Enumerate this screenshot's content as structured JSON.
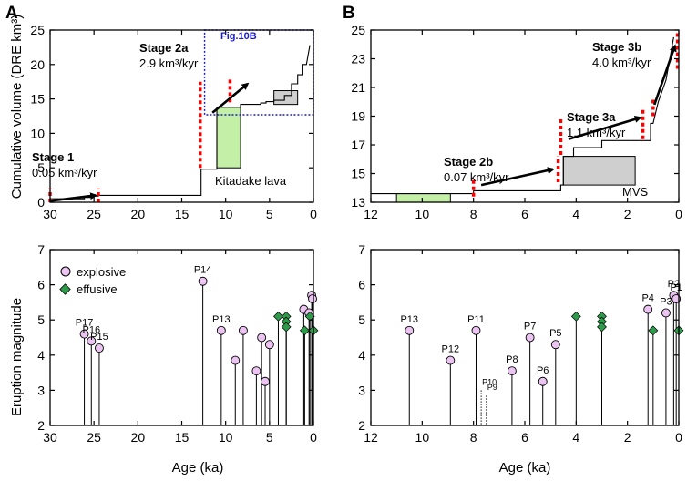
{
  "panel_labels": {
    "A": "A",
    "B": "B"
  },
  "colors": {
    "effusive": "#2e9b4b",
    "explosive_fill": "#ebc4f2",
    "lava_green": "#c3f0a6",
    "mvs_gray": "#cfcfcf",
    "stage_marker": "#ff0000",
    "box_blue": "#1a1acc"
  },
  "annotations": {
    "stage1": {
      "name": "Stage 1",
      "rate": "0.05 km³/kyr"
    },
    "stage2a": {
      "name": "Stage 2a",
      "rate": "2.9 km³/kyr"
    },
    "stage2b": {
      "name": "Stage 2b",
      "rate": "0.07 km³/kyr"
    },
    "stage3a": {
      "name": "Stage 3a",
      "rate": "1.1 km³/kyr"
    },
    "stage3b": {
      "name": "Stage 3b",
      "rate": "4.0 km³/kyr"
    },
    "kitadake": "Kitadake lava",
    "mvs": "MVS",
    "fig10b": "Fig.10B"
  },
  "legend": {
    "explosive": "explosive",
    "effusive": "effusive"
  },
  "chart_data": [
    {
      "id": "A-top",
      "type": "line",
      "ylabel": "Cumulative volume (DRE km³)",
      "xlim": [
        30,
        0
      ],
      "ylim": [
        0,
        25
      ],
      "xticks": [
        30,
        25,
        20,
        15,
        10,
        5,
        0
      ],
      "yticks": [
        0,
        5,
        10,
        15,
        20,
        25
      ],
      "series": [
        {
          "name": "cumulative volume",
          "points": [
            [
              30,
              0.5
            ],
            [
              26.1,
              0.5
            ],
            [
              26.1,
              0.7
            ],
            [
              25,
              0.7
            ],
            [
              25,
              0.9
            ],
            [
              24.5,
              0.9
            ],
            [
              24.5,
              1.0
            ],
            [
              12.8,
              1.0
            ],
            [
              12.8,
              4.8
            ],
            [
              11,
              4.8
            ],
            [
              11,
              13.8
            ],
            [
              8.3,
              13.8
            ],
            [
              8.3,
              14.2
            ],
            [
              6,
              14.2
            ],
            [
              6,
              14.4
            ],
            [
              5.4,
              14.4
            ],
            [
              5.4,
              14.6
            ],
            [
              4.5,
              14.6
            ],
            [
              4.5,
              14.8
            ],
            [
              3.3,
              14.8
            ],
            [
              3.3,
              15.5
            ],
            [
              2.5,
              15.5
            ],
            [
              2.5,
              17.2
            ],
            [
              1.8,
              17.2
            ],
            [
              1.8,
              18.5
            ],
            [
              1.2,
              18.5
            ],
            [
              1.2,
              20
            ],
            [
              0.8,
              20
            ],
            [
              0.4,
              22.8
            ]
          ]
        }
      ],
      "bars": [
        {
          "label": "Kitadake lava",
          "x0": 11,
          "x1": 8.3,
          "y0": 5,
          "y1": 13.8
        },
        {
          "label": "MVS",
          "x0": 4.5,
          "x1": 1.8,
          "y0": 14.2,
          "y1": 16.2
        }
      ],
      "stage_markers": [
        {
          "x": 30,
          "y0": 0,
          "y1": 2
        },
        {
          "x": 24.5,
          "y0": 0,
          "y1": 2
        },
        {
          "x": 12.9,
          "y0": 5,
          "y1": 17.5
        },
        {
          "x": 9.5,
          "y0": 14.5,
          "y1": 18
        }
      ],
      "arrows": [
        {
          "from": [
            30,
            0.2
          ],
          "to": [
            24.8,
            1.0
          ]
        },
        {
          "from": [
            11.5,
            13
          ],
          "to": [
            7.5,
            17.2
          ]
        }
      ],
      "inset_box": {
        "label": "Fig.10B",
        "x0": 12.4,
        "x1": 0,
        "y0": 12.7,
        "y1": 25
      }
    },
    {
      "id": "B-top",
      "type": "line",
      "xlim": [
        12,
        0
      ],
      "ylim": [
        13,
        25
      ],
      "xticks": [
        12,
        10,
        8,
        6,
        4,
        2,
        0
      ],
      "yticks": [
        13,
        15,
        17,
        19,
        21,
        23,
        25
      ],
      "series": [
        {
          "name": "cumulative volume",
          "points": [
            [
              12,
              13.6
            ],
            [
              8,
              13.6
            ],
            [
              8,
              13.8
            ],
            [
              4.6,
              13.8
            ],
            [
              4.6,
              14.2
            ],
            [
              4.5,
              14.2
            ],
            [
              4.5,
              16.2
            ],
            [
              4.1,
              16.2
            ],
            [
              4.1,
              16.8
            ],
            [
              3.0,
              16.8
            ],
            [
              3.0,
              17.3
            ],
            [
              1.1,
              17.3
            ],
            [
              1.1,
              18.5
            ],
            [
              1.0,
              18.5
            ],
            [
              0.8,
              20
            ],
            [
              0.5,
              21.5
            ],
            [
              0.2,
              24.5
            ]
          ]
        }
      ],
      "bars": [
        {
          "label": "green bar",
          "x0": 11,
          "x1": 8.9,
          "y0": 13,
          "y1": 13.6
        },
        {
          "label": "MVS",
          "x0": 4.5,
          "x1": 1.7,
          "y0": 14.2,
          "y1": 16.2
        }
      ],
      "stage_markers": [
        {
          "x": 8,
          "y0": 13.4,
          "y1": 14.6
        },
        {
          "x": 4.7,
          "y0": 14.4,
          "y1": 16.2
        },
        {
          "x": 4.6,
          "y0": 16.3,
          "y1": 18.8
        },
        {
          "x": 1.4,
          "y0": 17.4,
          "y1": 19.5
        },
        {
          "x": 1.0,
          "y0": 19,
          "y1": 20.3
        },
        {
          "x": 0.05,
          "y0": 22.3,
          "y1": 24.8
        }
      ],
      "arrows": [
        {
          "from": [
            7.7,
            14.2
          ],
          "to": [
            4.9,
            15.3
          ]
        },
        {
          "from": [
            4.3,
            17.4
          ],
          "to": [
            1.5,
            18.9
          ]
        },
        {
          "from": [
            0.95,
            19.8
          ],
          "to": [
            0.15,
            23.9
          ]
        }
      ]
    },
    {
      "id": "A-bottom",
      "type": "scatter",
      "xlabel": "Age (ka)",
      "ylabel": "Eruption magnitude",
      "xlim": [
        30,
        0
      ],
      "ylim": [
        2,
        7
      ],
      "xticks": [
        30,
        25,
        20,
        15,
        10,
        5,
        0
      ],
      "yticks": [
        2,
        3,
        4,
        5,
        6,
        7
      ],
      "explosive": [
        {
          "label": "P17",
          "x": 26.1,
          "y": 4.6
        },
        {
          "label": "P16",
          "x": 25.3,
          "y": 4.4
        },
        {
          "label": "P15",
          "x": 24.4,
          "y": 4.2
        },
        {
          "label": "P14",
          "x": 12.6,
          "y": 6.1
        },
        {
          "label": "P13",
          "x": 10.5,
          "y": 4.7
        },
        {
          "label": "",
          "x": 8.9,
          "y": 3.85
        },
        {
          "label": "",
          "x": 8.0,
          "y": 4.7
        },
        {
          "label": "",
          "x": 6.5,
          "y": 3.55
        },
        {
          "label": "",
          "x": 5.9,
          "y": 4.5
        },
        {
          "label": "",
          "x": 5.5,
          "y": 3.25
        },
        {
          "label": "",
          "x": 5.0,
          "y": 4.3
        },
        {
          "label": "",
          "x": 1.1,
          "y": 5.3
        },
        {
          "label": "",
          "x": 0.5,
          "y": 5.2
        },
        {
          "label": "",
          "x": 0.2,
          "y": 5.7
        },
        {
          "label": "",
          "x": 0.1,
          "y": 5.6
        }
      ],
      "effusive": [
        {
          "x": 4.0,
          "y": 5.1
        },
        {
          "x": 3.1,
          "y": 5.1
        },
        {
          "x": 3.1,
          "y": 4.95
        },
        {
          "x": 3.1,
          "y": 4.8
        },
        {
          "x": 1.0,
          "y": 4.7
        },
        {
          "x": 0.4,
          "y": 5.1
        },
        {
          "x": 0.0,
          "y": 4.7
        }
      ]
    },
    {
      "id": "B-bottom",
      "type": "scatter",
      "xlabel": "Age (ka)",
      "xlim": [
        12,
        0
      ],
      "ylim": [
        2,
        7
      ],
      "xticks": [
        12,
        10,
        8,
        6,
        4,
        2,
        0
      ],
      "yticks": [
        2,
        3,
        4,
        5,
        6,
        7
      ],
      "explosive": [
        {
          "label": "P13",
          "x": 10.5,
          "y": 4.7
        },
        {
          "label": "P12",
          "x": 8.9,
          "y": 3.85
        },
        {
          "label": "P11",
          "x": 7.9,
          "y": 4.7
        },
        {
          "label": "P8",
          "x": 6.5,
          "y": 3.55
        },
        {
          "label": "P7",
          "x": 5.8,
          "y": 4.5
        },
        {
          "label": "P6",
          "x": 5.3,
          "y": 3.25
        },
        {
          "label": "P5",
          "x": 4.8,
          "y": 4.3
        },
        {
          "label": "P4",
          "x": 1.2,
          "y": 5.3
        },
        {
          "label": "P3",
          "x": 0.5,
          "y": 5.2
        },
        {
          "label": "P2",
          "x": 0.2,
          "y": 5.7
        },
        {
          "label": "P1",
          "x": 0.1,
          "y": 5.6
        }
      ],
      "effusive": [
        {
          "x": 4.0,
          "y": 5.1
        },
        {
          "x": 3.0,
          "y": 5.1
        },
        {
          "x": 3.0,
          "y": 4.95
        },
        {
          "x": 3.0,
          "y": 4.8
        },
        {
          "x": 1.0,
          "y": 4.7
        },
        {
          "x": 0.0,
          "y": 4.7
        }
      ],
      "dotted": [
        {
          "label": "P10",
          "x": 7.7,
          "y": 3.0
        },
        {
          "label": "P9",
          "x": 7.5,
          "y": 2.85
        }
      ]
    }
  ]
}
